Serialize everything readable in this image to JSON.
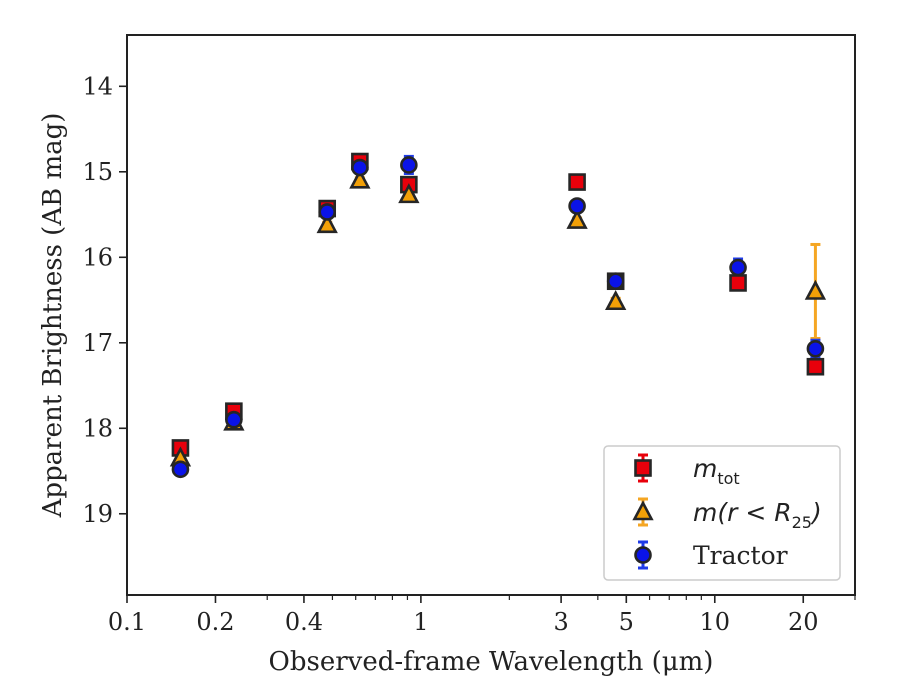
{
  "chart_data": {
    "type": "scatter",
    "xlabel": "Observed-frame Wavelength (μm)",
    "ylabel": "Apparent Brightness (AB mag)",
    "xscale": "log",
    "xlim": [
      0.1,
      30
    ],
    "ylim": [
      19.95,
      13.4
    ],
    "y_inverted": true,
    "x_ticks": [
      0.1,
      0.2,
      0.4,
      1,
      3,
      5,
      10,
      20
    ],
    "x_tick_labels": [
      "0.1",
      "0.2",
      "0.4",
      "1",
      "3",
      "5",
      "10",
      "20"
    ],
    "y_ticks": [
      14,
      15,
      16,
      17,
      18,
      19
    ],
    "y_tick_labels": [
      "14",
      "15",
      "16",
      "17",
      "18",
      "19"
    ],
    "grid": false,
    "legend_position": "lower-right",
    "series": [
      {
        "name": "m_tot",
        "legend_main": "m",
        "legend_sub": "tot",
        "marker": "square",
        "color": "#e8000b",
        "errcolor": "#e8000b",
        "x": [
          0.152,
          0.231,
          0.48,
          0.62,
          0.91,
          3.4,
          4.6,
          12.0,
          22.0
        ],
        "y": [
          18.23,
          17.8,
          15.43,
          14.88,
          15.15,
          15.12,
          16.28,
          16.3,
          17.28
        ],
        "yerr": [
          0.04,
          0.03,
          0.03,
          0.03,
          0.03,
          0.03,
          0.04,
          0.05,
          0.06
        ]
      },
      {
        "name": "m(r < R25)",
        "legend_main": "m(r < R",
        "legend_sub": "25",
        "legend_tail": ")",
        "marker": "triangle",
        "color": "#f2a007",
        "errcolor": "#f5a623",
        "x": [
          0.152,
          0.231,
          0.48,
          0.62,
          0.91,
          3.4,
          4.6,
          22.0
        ],
        "y": [
          18.35,
          17.93,
          15.62,
          15.1,
          15.27,
          15.57,
          16.52,
          16.4
        ],
        "yerr": [
          0.03,
          0.03,
          0.03,
          0.03,
          0.03,
          0.03,
          0.04,
          0.55
        ]
      },
      {
        "name": "Tractor",
        "legend_main": "Tractor",
        "marker": "circle",
        "color": "#0a13e8",
        "errcolor": "#1f3be8",
        "x": [
          0.152,
          0.231,
          0.48,
          0.62,
          0.91,
          3.4,
          4.6,
          12.0,
          22.0
        ],
        "y": [
          18.48,
          17.9,
          15.47,
          14.95,
          14.92,
          15.4,
          16.28,
          16.12,
          17.07
        ],
        "yerr": [
          0.05,
          0.04,
          0.03,
          0.03,
          0.1,
          0.05,
          0.04,
          0.1,
          0.1
        ]
      }
    ]
  }
}
